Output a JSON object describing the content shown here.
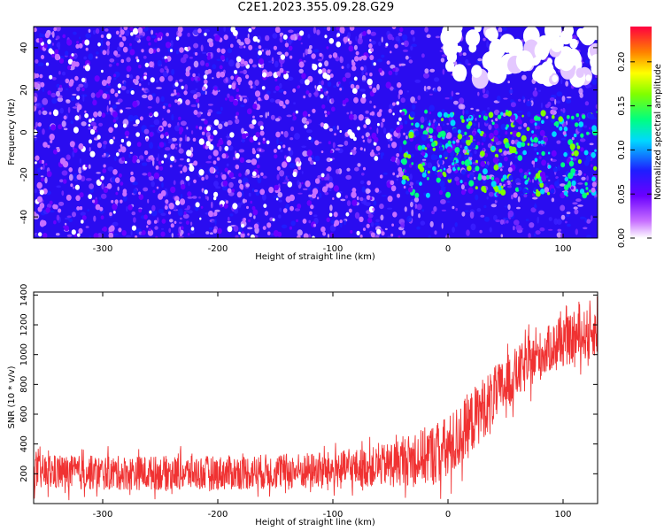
{
  "title": "C2E1.2023.355.09.28.G29",
  "chart_data": [
    {
      "type": "heatmap",
      "xlabel": "Height of straight line (km)",
      "ylabel": "Frequency (Hz)",
      "xlim": [
        -360,
        130
      ],
      "ylim": [
        -50,
        50
      ],
      "x_ticks": [
        -300,
        -200,
        -100,
        0,
        100
      ],
      "y_ticks": [
        -40,
        -20,
        0,
        20,
        40
      ],
      "colorbar": {
        "label": "Normalized spectral amplitude",
        "range": [
          0,
          0.24
        ],
        "ticks": [
          "0.00",
          "0.05",
          "0.10",
          "0.15",
          "0.20"
        ]
      },
      "regions": [
        {
          "x_range": [
            -360,
            -40
          ],
          "y_range": [
            -50,
            50
          ],
          "amplitude": 0.04
        },
        {
          "x_range": [
            -40,
            130
          ],
          "y_range": [
            -30,
            10
          ],
          "amplitude": 0.11
        },
        {
          "x_range": [
            0,
            130
          ],
          "y_range": [
            25,
            50
          ],
          "amplitude": 0.0
        }
      ]
    },
    {
      "type": "area",
      "xlabel": "Height of straight line (km)",
      "ylabel": "SNR (10 * v/v)",
      "xlim": [
        -360,
        130
      ],
      "ylim": [
        0,
        1420
      ],
      "x_ticks": [
        -300,
        -200,
        -100,
        0,
        100
      ],
      "y_ticks": [
        200,
        400,
        600,
        800,
        1000,
        1200,
        1400
      ],
      "color": "#f03232",
      "envelope": {
        "x": [
          -360,
          -300,
          -200,
          -100,
          -60,
          -30,
          0,
          30,
          60,
          90,
          130
        ],
        "low": [
          60,
          60,
          60,
          70,
          80,
          80,
          60,
          380,
          650,
          850,
          950
        ],
        "high": [
          360,
          350,
          350,
          380,
          420,
          520,
          650,
          900,
          1100,
          1250,
          1380
        ]
      }
    }
  ]
}
